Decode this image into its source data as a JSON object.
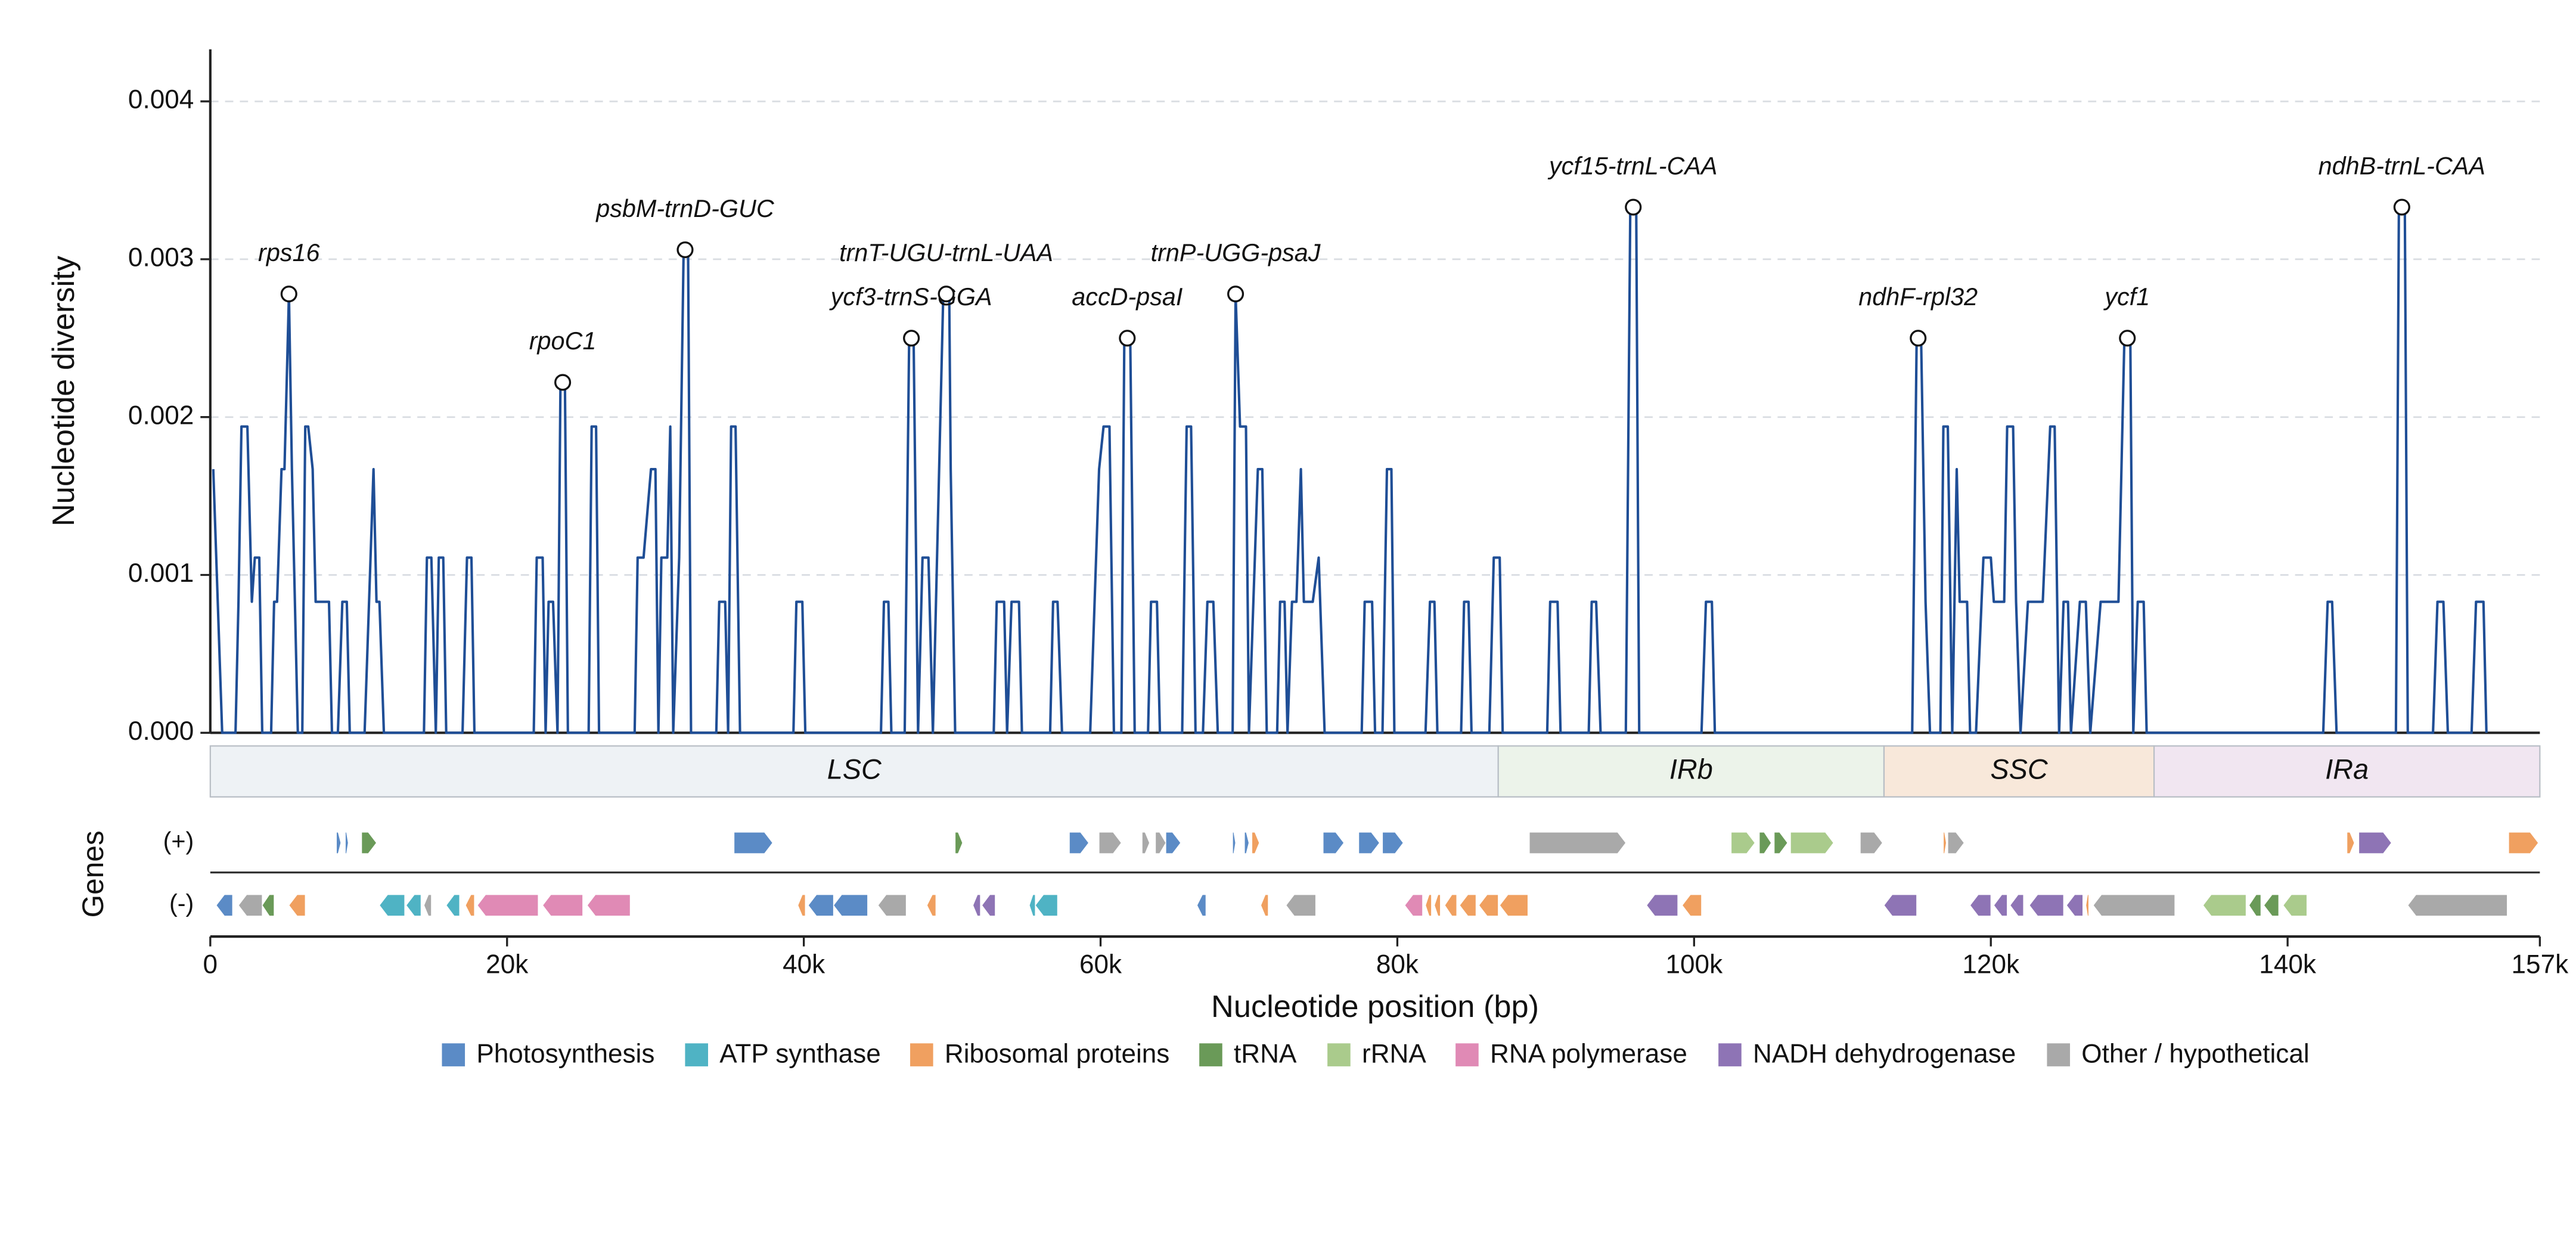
{
  "chart_data": {
    "type": "line",
    "ylabel": "Nucleotide diversity",
    "xlabel": "Nucleotide position (bp)",
    "color": "#1f4e96",
    "xlim": [
      0,
      157000
    ],
    "ylim": [
      0,
      0.00433
    ],
    "xticks": [
      0,
      {
        "value": 20000,
        "label": "20k"
      },
      {
        "value": 40000,
        "label": "40k"
      },
      {
        "value": 60000,
        "label": "60k"
      },
      {
        "value": 80000,
        "label": "80k"
      },
      {
        "value": 100000,
        "label": "100k"
      },
      {
        "value": 120000,
        "label": "120k"
      },
      {
        "value": 140000,
        "label": "140k"
      },
      {
        "value": 157000,
        "label": "157k"
      }
    ],
    "yticks": [
      {
        "value": 0,
        "label": "0.000"
      },
      0.001,
      0.002,
      0.003,
      0.004
    ],
    "grid": true,
    "x": [
      200,
      800,
      1700,
      1900,
      2100,
      2500,
      2800,
      3000,
      3300,
      3500,
      4100,
      4300,
      4500,
      4800,
      5000,
      5300,
      5500,
      5900,
      6200,
      6400,
      6600,
      6900,
      7100,
      8000,
      8200,
      8600,
      8900,
      9200,
      9400,
      10400,
      10700,
      11000,
      11200,
      11400,
      11700,
      14400,
      14600,
      14900,
      15200,
      15400,
      15700,
      15900,
      17000,
      17300,
      17600,
      17800,
      21800,
      22000,
      22400,
      22600,
      22800,
      23100,
      23400,
      23600,
      23900,
      24100,
      25500,
      25700,
      26000,
      26200,
      28600,
      28800,
      29200,
      29700,
      30000,
      30200,
      30400,
      30800,
      31000,
      31200,
      31600,
      31900,
      32200,
      32400,
      34100,
      34300,
      34700,
      34900,
      35100,
      35400,
      35700,
      39300,
      39500,
      39900,
      40100,
      45200,
      45400,
      45700,
      45900,
      46800,
      47100,
      47400,
      47700,
      48000,
      48400,
      48700,
      49400,
      49800,
      49900,
      50200,
      52800,
      53000,
      53500,
      53700,
      54000,
      54500,
      54700,
      56600,
      56800,
      57100,
      57400,
      59300,
      59900,
      60200,
      60600,
      60900,
      61400,
      61600,
      62000,
      62300,
      63200,
      63400,
      63800,
      64000,
      65500,
      65800,
      66100,
      66400,
      66900,
      67200,
      67600,
      67900,
      68900,
      69100,
      69400,
      69800,
      70000,
      70600,
      70900,
      71200,
      71900,
      72100,
      72400,
      72600,
      72900,
      73200,
      73500,
      73700,
      74300,
      74700,
      75100,
      77600,
      77800,
      78300,
      78500,
      79000,
      79300,
      79600,
      79800,
      81900,
      82200,
      82500,
      82700,
      84300,
      84500,
      84800,
      85000,
      86200,
      86500,
      86900,
      87100,
      90100,
      90300,
      90800,
      91000,
      92900,
      93100,
      93400,
      93700,
      95400,
      95700,
      96100,
      96300,
      100500,
      100800,
      101200,
      101400,
      114700,
      115000,
      115300,
      115600,
      115900,
      116600,
      116800,
      117100,
      117400,
      117700,
      117900,
      118400,
      118600,
      119000,
      119500,
      120000,
      120200,
      120900,
      121100,
      121500,
      121700,
      122000,
      122500,
      123500,
      124000,
      124300,
      124600,
      124900,
      125200,
      125400,
      126000,
      126400,
      126700,
      127400,
      128600,
      129000,
      129400,
      129600,
      129900,
      130300,
      130500,
      142400,
      142700,
      143000,
      143300,
      147300,
      147500,
      147900,
      148100,
      149800,
      150100,
      150500,
      150800,
      152400,
      152700,
      153200,
      153400
    ],
    "values": [
      0.00167,
      0,
      0,
      0.00083,
      0.00194,
      0.00194,
      0.00083,
      0.00111,
      0.00111,
      0,
      0,
      0.00083,
      0.00083,
      0.00167,
      0.00167,
      0.00278,
      0.00167,
      0,
      0,
      0.00194,
      0.00194,
      0.00167,
      0.00083,
      0.00083,
      0,
      0,
      0.00083,
      0.00083,
      0,
      0,
      0.00083,
      0.00167,
      0.00083,
      0.00083,
      0,
      0,
      0.00111,
      0.00111,
      0,
      0.00111,
      0.00111,
      0,
      0,
      0.00111,
      0.00111,
      0,
      0,
      0.00111,
      0.00111,
      0,
      0.00083,
      0.00083,
      0,
      0.00222,
      0.00222,
      0,
      0,
      0.00194,
      0.00194,
      0,
      0,
      0.00111,
      0.00111,
      0.00167,
      0.00167,
      0,
      0.00111,
      0.00111,
      0.00194,
      0,
      0.00111,
      0.00306,
      0.00306,
      0,
      0,
      0.00083,
      0.00083,
      0,
      0.00194,
      0.00194,
      0,
      0,
      0.00083,
      0.00083,
      0,
      0,
      0.00083,
      0.00083,
      0,
      0,
      0.0025,
      0.0025,
      0,
      0.00111,
      0.00111,
      0,
      0.00278,
      0.00278,
      0.00167,
      0,
      0,
      0.00083,
      0.00083,
      0,
      0.00083,
      0.00083,
      0,
      0,
      0.00083,
      0.00083,
      0,
      0,
      0.00167,
      0.00194,
      0.00194,
      0,
      0,
      0.0025,
      0.0025,
      0,
      0,
      0.00083,
      0.00083,
      0,
      0,
      0.00194,
      0.00194,
      0,
      0,
      0.00083,
      0.00083,
      0,
      0,
      0.00278,
      0.00194,
      0.00194,
      0,
      0.00167,
      0.00167,
      0,
      0,
      0.00083,
      0.00083,
      0,
      0.00083,
      0.00083,
      0.00167,
      0.00083,
      0.00083,
      0.00111,
      0,
      0,
      0.00083,
      0.00083,
      0,
      0,
      0.00167,
      0.00167,
      0,
      0,
      0.00083,
      0.00083,
      0,
      0,
      0.00083,
      0.00083,
      0,
      0,
      0.00111,
      0.00111,
      0,
      0,
      0.00083,
      0.00083,
      0,
      0,
      0.00083,
      0.00083,
      0,
      0,
      0.00333,
      0.00333,
      0,
      0,
      0.00083,
      0.00083,
      0,
      0,
      0.0025,
      0.0025,
      0.00083,
      0,
      0,
      0.00194,
      0.00194,
      0,
      0.00167,
      0.00083,
      0.00083,
      0,
      0,
      0.00111,
      0.00111,
      0.00083,
      0.00083,
      0.00194,
      0.00194,
      0.00083,
      0,
      0.00083,
      0.00083,
      0.00194,
      0.00194,
      0,
      0.00083,
      0.00083,
      0,
      0.00083,
      0.00083,
      0,
      0.00083,
      0.00083,
      0.0025,
      0.0025,
      0,
      0.00083,
      0.00083,
      0,
      0,
      0.00083,
      0.00083,
      0,
      0,
      0.00333,
      0.00333,
      0,
      0,
      0.00083,
      0.00083,
      0,
      0,
      0.00083,
      0.00083,
      0
    ],
    "annotations": [
      {
        "label": "rps16",
        "x": 5300,
        "y": 0.00278
      },
      {
        "label": "rpoC1",
        "x": 23750,
        "y": 0.00222
      },
      {
        "label": "psbM-trnD-GUC",
        "x": 32000,
        "y": 0.00306
      },
      {
        "label": "ycf3-trnS-GGA",
        "x": 47250,
        "y": 0.0025
      },
      {
        "label": "trnT-UGU-trnL-UAA",
        "x": 49600,
        "y": 0.00278
      },
      {
        "label": "accD-psaI",
        "x": 61800,
        "y": 0.0025
      },
      {
        "label": "trnP-UGG-psaJ",
        "x": 69100,
        "y": 0.00278
      },
      {
        "label": "ycf15-trnL-CAA",
        "x": 95900,
        "y": 0.00333
      },
      {
        "label": "ndhF-rpl32",
        "x": 115100,
        "y": 0.0025
      },
      {
        "label": "ycf1",
        "x": 129200,
        "y": 0.0025
      },
      {
        "label": "ndhB-trnL-CAA",
        "x": 147700,
        "y": 0.00333
      }
    ],
    "regions": [
      {
        "label": "LSC",
        "start": 0,
        "end": 86800,
        "color": "#eef2f5"
      },
      {
        "label": "IRb",
        "start": 86800,
        "end": 112800,
        "color": "#ecf3ea"
      },
      {
        "label": "SSC",
        "start": 112800,
        "end": 131000,
        "color": "#f8e8da"
      },
      {
        "label": "IRa",
        "start": 131000,
        "end": 157000,
        "color": "#f1e6f1"
      }
    ],
    "genes_label": "Genes",
    "tracks": [
      {
        "label": "(+)",
        "genes": [
          {
            "start": 8500,
            "end": 8800,
            "category": "Photosynthesis"
          },
          {
            "start": 9100,
            "end": 9300,
            "category": "Photosynthesis"
          },
          {
            "start": 10200,
            "end": 11200,
            "category": "tRNA"
          },
          {
            "start": 35300,
            "end": 37900,
            "category": "Photosynthesis"
          },
          {
            "start": 50200,
            "end": 50700,
            "category": "tRNA"
          },
          {
            "start": 57900,
            "end": 59200,
            "category": "Photosynthesis"
          },
          {
            "start": 59900,
            "end": 61400,
            "category": "Other / hypothetical"
          },
          {
            "start": 62800,
            "end": 63300,
            "category": "Other / hypothetical"
          },
          {
            "start": 63700,
            "end": 64400,
            "category": "Other / hypothetical"
          },
          {
            "start": 64400,
            "end": 65400,
            "category": "Photosynthesis"
          },
          {
            "start": 68900,
            "end": 69100,
            "category": "Photosynthesis"
          },
          {
            "start": 69700,
            "end": 70000,
            "category": "Photosynthesis"
          },
          {
            "start": 70200,
            "end": 70700,
            "category": "Ribosomal proteins"
          },
          {
            "start": 75000,
            "end": 76400,
            "category": "Photosynthesis"
          },
          {
            "start": 77400,
            "end": 78800,
            "category": "Photosynthesis"
          },
          {
            "start": 79000,
            "end": 80400,
            "category": "Photosynthesis"
          },
          {
            "start": 88900,
            "end": 95400,
            "category": "Other / hypothetical"
          },
          {
            "start": 102500,
            "end": 104100,
            "category": "rRNA"
          },
          {
            "start": 104400,
            "end": 105200,
            "category": "tRNA"
          },
          {
            "start": 105400,
            "end": 106300,
            "category": "tRNA"
          },
          {
            "start": 106500,
            "end": 109400,
            "category": "rRNA"
          },
          {
            "start": 111200,
            "end": 112700,
            "category": "Other / hypothetical"
          },
          {
            "start": 116800,
            "end": 117000,
            "category": "Ribosomal proteins"
          },
          {
            "start": 117100,
            "end": 118200,
            "category": "Other / hypothetical"
          },
          {
            "start": 144000,
            "end": 144500,
            "category": "Ribosomal proteins"
          },
          {
            "start": 144800,
            "end": 147000,
            "category": "NADH dehydrogenase"
          },
          {
            "start": 154900,
            "end": 156900,
            "category": "Ribosomal proteins"
          }
        ]
      },
      {
        "label": "(-)",
        "genes": [
          {
            "start": 400,
            "end": 1500,
            "category": "Photosynthesis"
          },
          {
            "start": 1900,
            "end": 3500,
            "category": "Other / hypothetical"
          },
          {
            "start": 3500,
            "end": 4300,
            "category": "tRNA"
          },
          {
            "start": 5300,
            "end": 6400,
            "category": "Ribosomal proteins"
          },
          {
            "start": 11400,
            "end": 13100,
            "category": "ATP synthase"
          },
          {
            "start": 13200,
            "end": 14200,
            "category": "ATP synthase"
          },
          {
            "start": 14400,
            "end": 14900,
            "category": "Other / hypothetical"
          },
          {
            "start": 15900,
            "end": 16800,
            "category": "ATP synthase"
          },
          {
            "start": 17200,
            "end": 17800,
            "category": "Ribosomal proteins"
          },
          {
            "start": 18000,
            "end": 22100,
            "category": "RNA polymerase"
          },
          {
            "start": 22400,
            "end": 25100,
            "category": "RNA polymerase"
          },
          {
            "start": 25400,
            "end": 28300,
            "category": "RNA polymerase"
          },
          {
            "start": 39600,
            "end": 40100,
            "category": "Ribosomal proteins"
          },
          {
            "start": 40300,
            "end": 42000,
            "category": "Photosynthesis"
          },
          {
            "start": 42000,
            "end": 44300,
            "category": "Photosynthesis"
          },
          {
            "start": 45000,
            "end": 46900,
            "category": "Other / hypothetical"
          },
          {
            "start": 48300,
            "end": 48900,
            "category": "Ribosomal proteins"
          },
          {
            "start": 51400,
            "end": 51900,
            "category": "NADH dehydrogenase"
          },
          {
            "start": 52000,
            "end": 52900,
            "category": "NADH dehydrogenase"
          },
          {
            "start": 55200,
            "end": 55600,
            "category": "ATP synthase"
          },
          {
            "start": 55600,
            "end": 57100,
            "category": "ATP synthase"
          },
          {
            "start": 66500,
            "end": 67100,
            "category": "Photosynthesis"
          },
          {
            "start": 70800,
            "end": 71300,
            "category": "Ribosomal proteins"
          },
          {
            "start": 72500,
            "end": 74500,
            "category": "Other / hypothetical"
          },
          {
            "start": 80500,
            "end": 81700,
            "category": "RNA polymerase"
          },
          {
            "start": 81900,
            "end": 82300,
            "category": "Ribosomal proteins"
          },
          {
            "start": 82500,
            "end": 82900,
            "category": "Ribosomal proteins"
          },
          {
            "start": 83200,
            "end": 84000,
            "category": "Ribosomal proteins"
          },
          {
            "start": 84200,
            "end": 85300,
            "category": "Ribosomal proteins"
          },
          {
            "start": 85500,
            "end": 86800,
            "category": "Ribosomal proteins"
          },
          {
            "start": 86900,
            "end": 88800,
            "category": "Ribosomal proteins"
          },
          {
            "start": 96800,
            "end": 98900,
            "category": "NADH dehydrogenase"
          },
          {
            "start": 99200,
            "end": 100500,
            "category": "Ribosomal proteins"
          },
          {
            "start": 112800,
            "end": 115000,
            "category": "NADH dehydrogenase"
          },
          {
            "start": 118600,
            "end": 120000,
            "category": "NADH dehydrogenase"
          },
          {
            "start": 120200,
            "end": 121100,
            "category": "NADH dehydrogenase"
          },
          {
            "start": 121300,
            "end": 122200,
            "category": "NADH dehydrogenase"
          },
          {
            "start": 122600,
            "end": 124900,
            "category": "NADH dehydrogenase"
          },
          {
            "start": 125100,
            "end": 126200,
            "category": "NADH dehydrogenase"
          },
          {
            "start": 126400,
            "end": 126600,
            "category": "Ribosomal proteins"
          },
          {
            "start": 126900,
            "end": 132400,
            "category": "Other / hypothetical"
          },
          {
            "start": 134300,
            "end": 137200,
            "category": "rRNA"
          },
          {
            "start": 137400,
            "end": 138200,
            "category": "tRNA"
          },
          {
            "start": 138400,
            "end": 139400,
            "category": "tRNA"
          },
          {
            "start": 139700,
            "end": 141300,
            "category": "rRNA"
          },
          {
            "start": 148100,
            "end": 154800,
            "category": "Other / hypothetical"
          }
        ]
      }
    ],
    "legend": [
      {
        "name": "Photosynthesis",
        "color": "#5b8bc6"
      },
      {
        "name": "ATP synthase",
        "color": "#4fb3c4"
      },
      {
        "name": "Ribosomal proteins",
        "color": "#f0a060"
      },
      {
        "name": "tRNA",
        "color": "#6a9a58"
      },
      {
        "name": "rRNA",
        "color": "#aacb8c"
      },
      {
        "name": "RNA polymerase",
        "color": "#e08ab5"
      },
      {
        "name": "NADH dehydrogenase",
        "color": "#8e74b5"
      },
      {
        "name": "Other / hypothetical",
        "color": "#a9a9a9"
      }
    ]
  }
}
